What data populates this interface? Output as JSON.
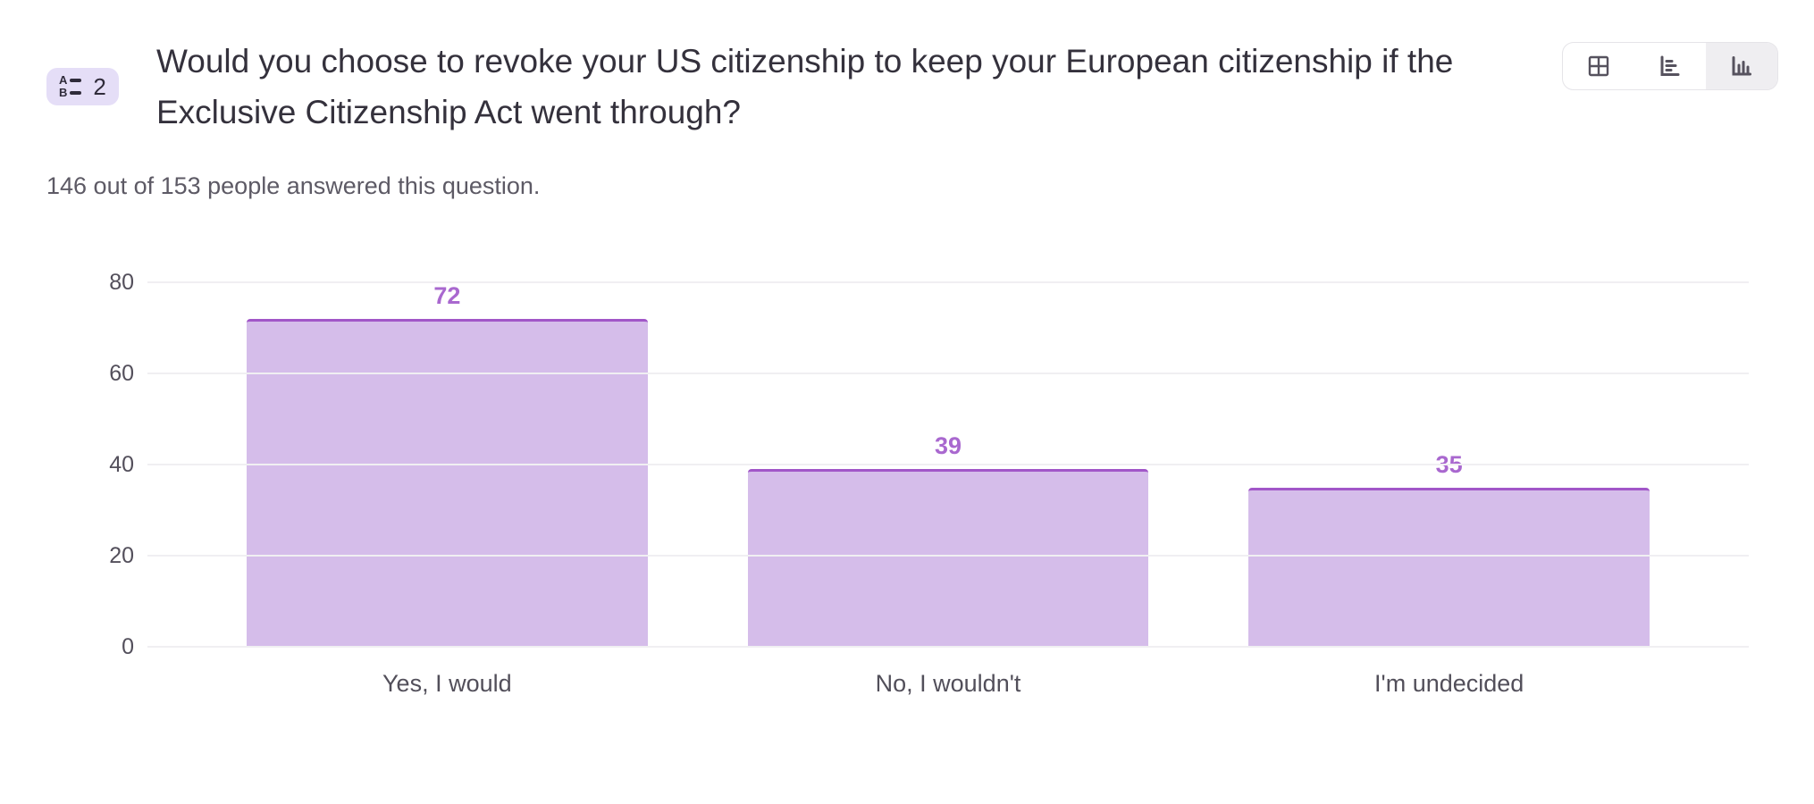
{
  "header": {
    "badge": {
      "icon": "choice-question-icon",
      "number": "2"
    },
    "title": "Would you choose to revoke your US citizenship to keep your European citizenship if the Exclusive Citizenship Act went through?",
    "subtitle": "146 out of 153 people answered this question.",
    "view_toggle": [
      {
        "label": "table view",
        "icon": "table-grid-icon",
        "selected": false
      },
      {
        "label": "horizontal bar view",
        "icon": "bar-chart-horizontal-icon",
        "selected": false
      },
      {
        "label": "vertical bar view",
        "icon": "bar-chart-vertical-icon",
        "selected": true
      }
    ]
  },
  "chart_data": {
    "type": "bar",
    "categories": [
      "Yes, I would",
      "No, I wouldn't",
      "I'm undecided"
    ],
    "values": [
      72,
      39,
      35
    ],
    "title": "",
    "xlabel": "",
    "ylabel": "",
    "ylim": [
      0,
      80
    ],
    "yticks": [
      80,
      60,
      40,
      20,
      0
    ],
    "grid": true,
    "legend": "none",
    "bar_fill": "#d5bdea",
    "bar_border": "#a156c8",
    "value_label_color": "#a968cf",
    "grid_color": "#f0eff2",
    "axis_text_color": "#534f5b"
  },
  "colors": {
    "badge_bg": "#e5def7",
    "title_text": "#34313c",
    "subtitle_text": "#5d5a65",
    "icon_stroke": "#56525e",
    "toggle_selected_bg": "#efeef1",
    "toggle_border": "#e5e4e8"
  }
}
